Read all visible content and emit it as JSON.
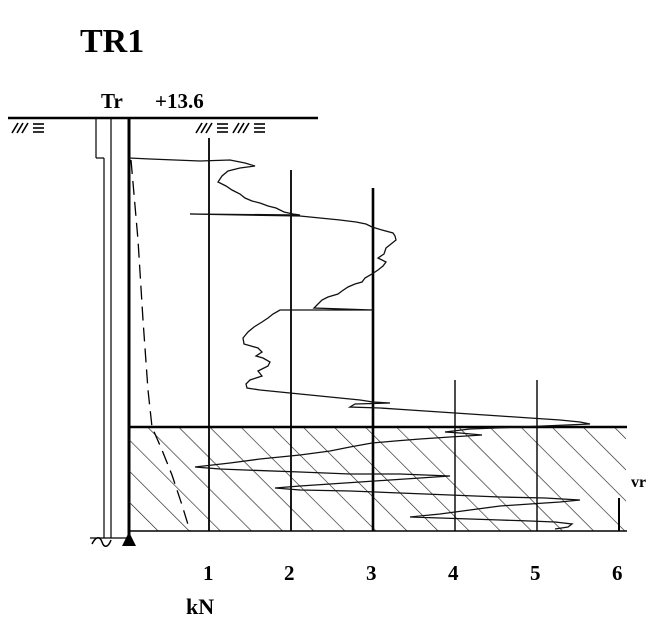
{
  "title": "TR1",
  "surface": {
    "label": "Tr",
    "elevation": "+13.6"
  },
  "layer_label": "vr",
  "x_axis": {
    "unit": "kN",
    "ticks": [
      "1",
      "2",
      "3",
      "4",
      "5",
      "6"
    ]
  },
  "colors": {
    "ink": "#000000",
    "hatch": "#222222",
    "curve": "#111111"
  },
  "icons": [
    "ground-surface-hatch-icon",
    "penetrometer-tip-icon"
  ]
}
